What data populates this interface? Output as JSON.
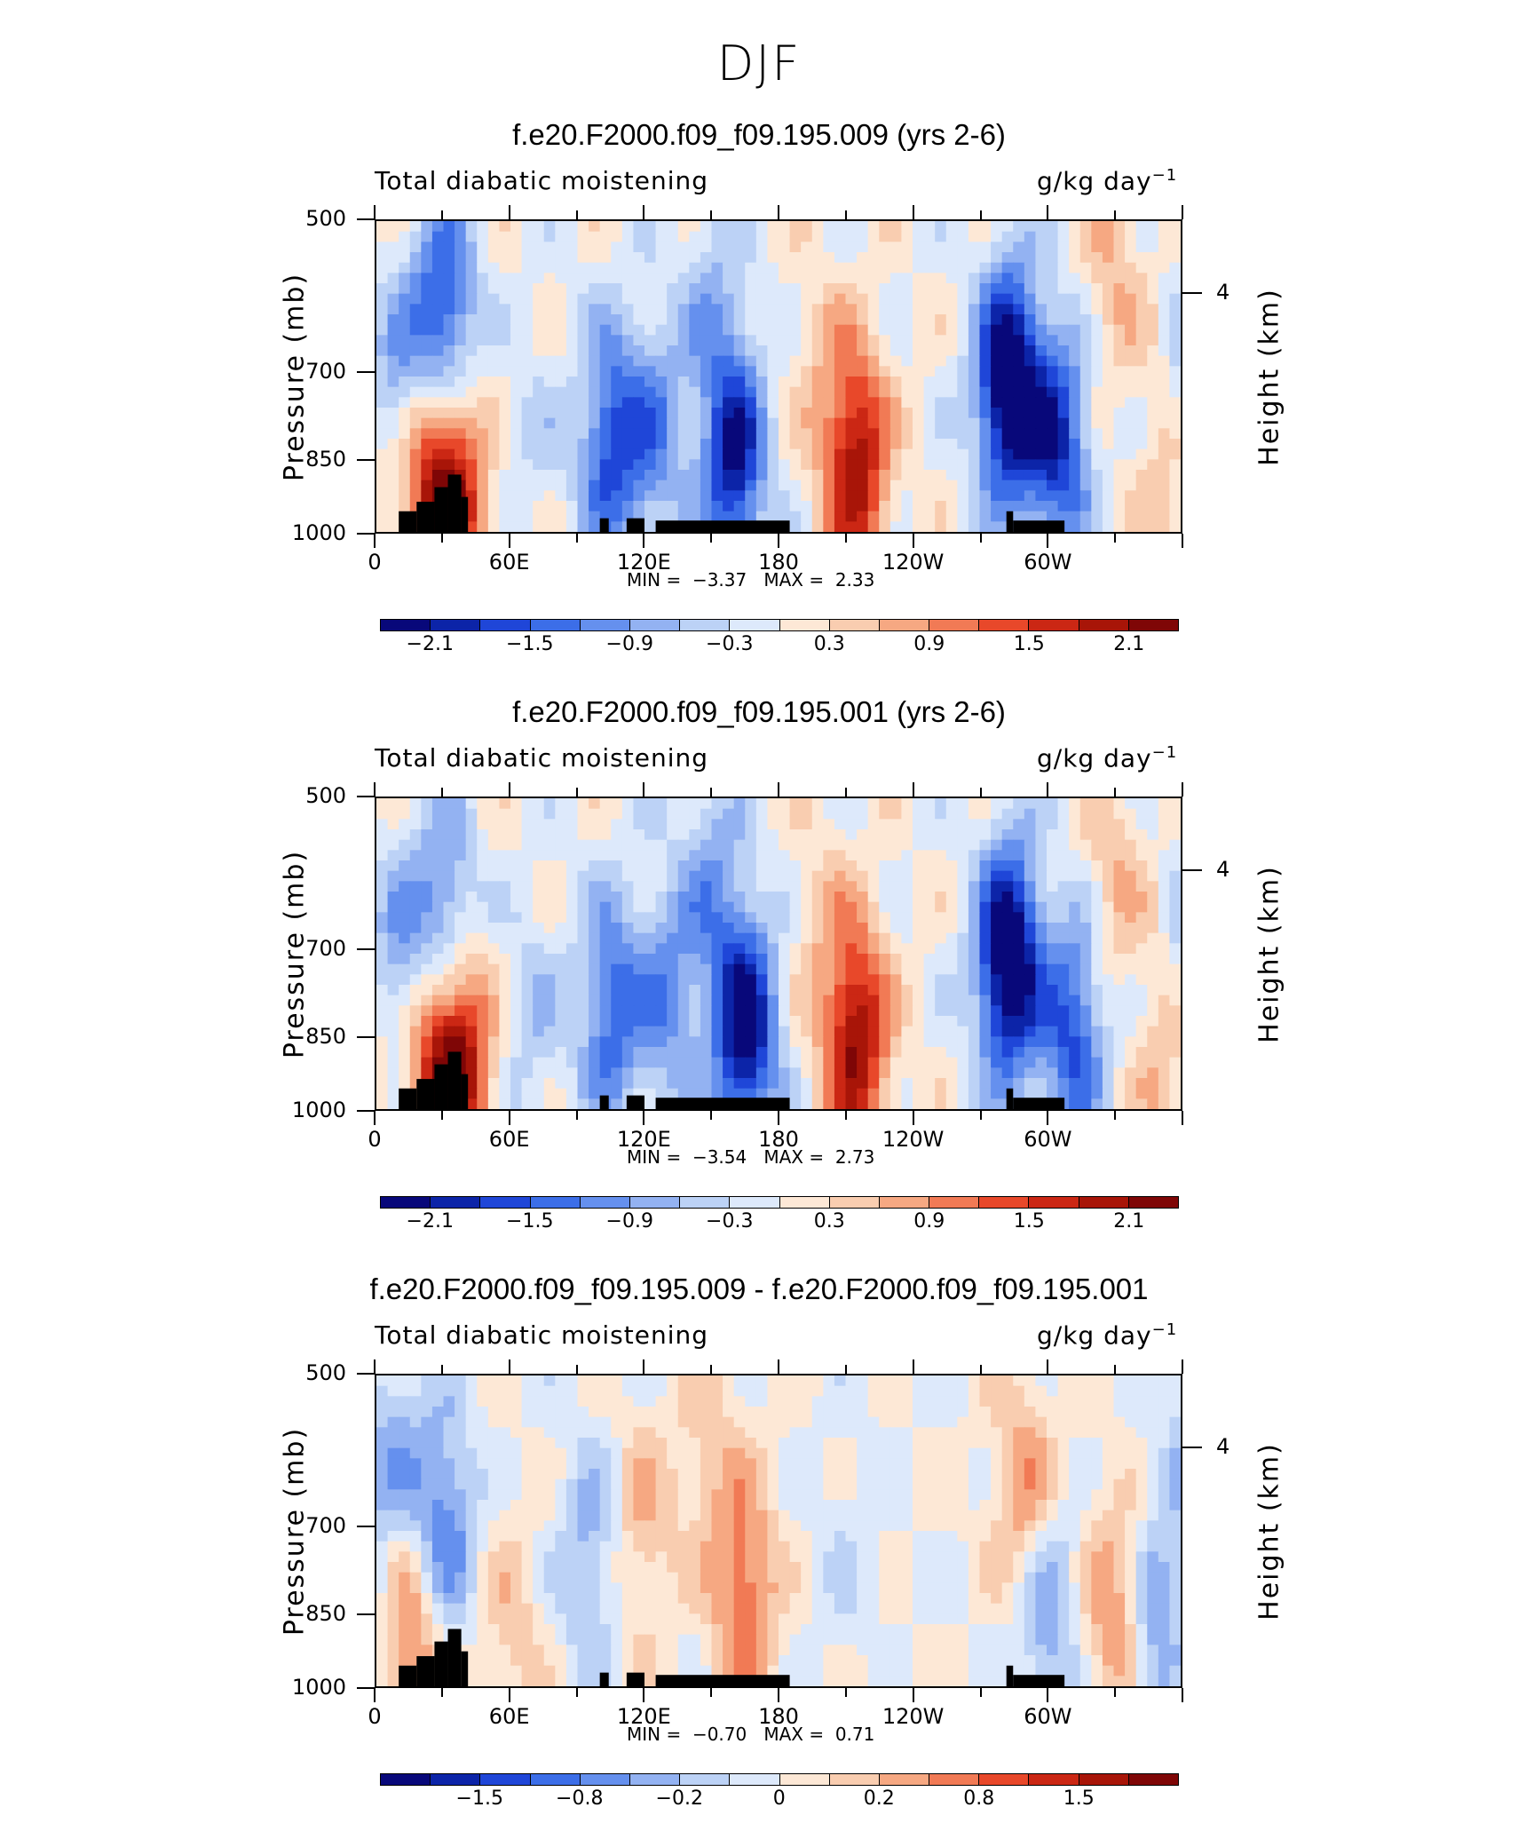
{
  "figure_title": "DJF",
  "colors": {
    "colorbar_main": [
      "#08087a",
      "#0c24a8",
      "#1f46d8",
      "#3c6ee8",
      "#6590ee",
      "#93b2f2",
      "#bcd2f6",
      "#dde9fb",
      "#fde8d6",
      "#f9cdb0",
      "#f6a882",
      "#f17a55",
      "#e8482a",
      "#cb2714",
      "#a81508",
      "#7f0606"
    ],
    "land_mask": "#000000"
  },
  "chart_data": [
    {
      "type": "heatmap",
      "title": "f.e20.F2000.f09_f09.195.009 (yrs 2-6)",
      "field_label": "Total diabatic moistening",
      "units": "g/kg day",
      "units_exponent": "−1",
      "ylabel": "Pressure (mb)",
      "ylabel_right": "Height (km)",
      "yticks": [
        "500",
        "700",
        "850",
        "1000"
      ],
      "yticks_right": [
        "4"
      ],
      "xticks": [
        "0",
        "60E",
        "120E",
        "180",
        "120W",
        "60W"
      ],
      "ylim": [
        1000,
        500
      ],
      "xlim": [
        0,
        360
      ],
      "min_label": "MIN =",
      "min_value": "−3.37",
      "max_label": "MAX =",
      "max_value": "2.33",
      "colorbar_labels": [
        "−2.1",
        "−1.5",
        "−0.9",
        "−0.3",
        "0.3",
        "0.9",
        "1.5",
        "2.1"
      ],
      "features": [
        {
          "lon": 20,
          "p": 870,
          "v": 1.6
        },
        {
          "lon": 35,
          "p": 920,
          "v": 1.9
        },
        {
          "lon": 30,
          "p": 620,
          "v": -1.8
        },
        {
          "lon": 10,
          "p": 760,
          "v": -1.3
        },
        {
          "lon": 105,
          "p": 820,
          "v": -1.6
        },
        {
          "lon": 125,
          "p": 800,
          "v": -1.0
        },
        {
          "lon": 160,
          "p": 850,
          "v": -2.1
        },
        {
          "lon": 150,
          "p": 600,
          "v": -0.6
        },
        {
          "lon": 215,
          "p": 860,
          "v": 2.0
        },
        {
          "lon": 200,
          "p": 700,
          "v": 0.4
        },
        {
          "lon": 283,
          "p": 720,
          "v": -2.8
        },
        {
          "lon": 305,
          "p": 820,
          "v": -1.8
        },
        {
          "lon": 330,
          "p": 560,
          "v": 0.6
        },
        {
          "lon": 70,
          "p": 820,
          "v": -0.3
        },
        {
          "lon": 355,
          "p": 880,
          "v": 0.6
        }
      ]
    },
    {
      "type": "heatmap",
      "title": "f.e20.F2000.f09_f09.195.001 (yrs 2-6)",
      "field_label": "Total diabatic moistening",
      "units": "g/kg day",
      "units_exponent": "−1",
      "ylabel": "Pressure (mb)",
      "ylabel_right": "Height (km)",
      "yticks": [
        "500",
        "700",
        "850",
        "1000"
      ],
      "yticks_right": [
        "4"
      ],
      "xticks": [
        "0",
        "60E",
        "120E",
        "180",
        "120W",
        "60W"
      ],
      "ylim": [
        1000,
        500
      ],
      "xlim": [
        0,
        360
      ],
      "min_label": "MIN =",
      "min_value": "−3.54",
      "max_label": "MAX =",
      "max_value": "2.73",
      "colorbar_labels": [
        "−2.1",
        "−1.5",
        "−0.9",
        "−0.3",
        "0.3",
        "0.9",
        "1.5",
        "2.1"
      ],
      "features": [
        {
          "lon": 22,
          "p": 870,
          "v": 1.4
        },
        {
          "lon": 37,
          "p": 900,
          "v": 2.2
        },
        {
          "lon": 30,
          "p": 660,
          "v": -1.4
        },
        {
          "lon": 10,
          "p": 760,
          "v": -1.2
        },
        {
          "lon": 105,
          "p": 800,
          "v": -1.4
        },
        {
          "lon": 130,
          "p": 780,
          "v": -1.0
        },
        {
          "lon": 165,
          "p": 840,
          "v": -2.4
        },
        {
          "lon": 150,
          "p": 600,
          "v": -0.8
        },
        {
          "lon": 215,
          "p": 860,
          "v": 2.1
        },
        {
          "lon": 200,
          "p": 680,
          "v": 0.4
        },
        {
          "lon": 283,
          "p": 720,
          "v": -2.8
        },
        {
          "lon": 312,
          "p": 840,
          "v": -1.6
        },
        {
          "lon": 330,
          "p": 600,
          "v": 0.6
        },
        {
          "lon": 70,
          "p": 820,
          "v": -0.5
        },
        {
          "lon": 355,
          "p": 900,
          "v": 0.7
        }
      ]
    },
    {
      "type": "heatmap",
      "title": "f.e20.F2000.f09_f09.195.009 - f.e20.F2000.f09_f09.195.001",
      "field_label": "Total diabatic moistening",
      "units": "g/kg day",
      "units_exponent": "−1",
      "ylabel": "Pressure (mb)",
      "ylabel_right": "Height (km)",
      "yticks": [
        "500",
        "700",
        "850",
        "1000"
      ],
      "yticks_right": [
        "4"
      ],
      "xticks": [
        "0",
        "60E",
        "120E",
        "180",
        "120W",
        "60W"
      ],
      "ylim": [
        1000,
        500
      ],
      "xlim": [
        0,
        360
      ],
      "min_label": "MIN =",
      "min_value": "−0.70",
      "max_label": "MAX =",
      "max_value": "0.71",
      "colorbar_labels": [
        "−1.5",
        "−0.8",
        "−0.2",
        "0",
        "0.2",
        "0.8",
        "1.5"
      ],
      "features": [
        {
          "lon": 15,
          "p": 900,
          "v": 0.5
        },
        {
          "lon": 30,
          "p": 700,
          "v": -0.5
        },
        {
          "lon": 8,
          "p": 600,
          "v": -0.3
        },
        {
          "lon": 95,
          "p": 750,
          "v": -0.3
        },
        {
          "lon": 120,
          "p": 700,
          "v": 0.25
        },
        {
          "lon": 165,
          "p": 820,
          "v": 0.5
        },
        {
          "lon": 150,
          "p": 600,
          "v": 0.2
        },
        {
          "lon": 210,
          "p": 750,
          "v": -0.1
        },
        {
          "lon": 290,
          "p": 650,
          "v": 0.4
        },
        {
          "lon": 300,
          "p": 850,
          "v": -0.4
        },
        {
          "lon": 330,
          "p": 850,
          "v": 0.4
        },
        {
          "lon": 350,
          "p": 880,
          "v": -0.4
        },
        {
          "lon": 60,
          "p": 880,
          "v": 0.2
        }
      ]
    }
  ]
}
